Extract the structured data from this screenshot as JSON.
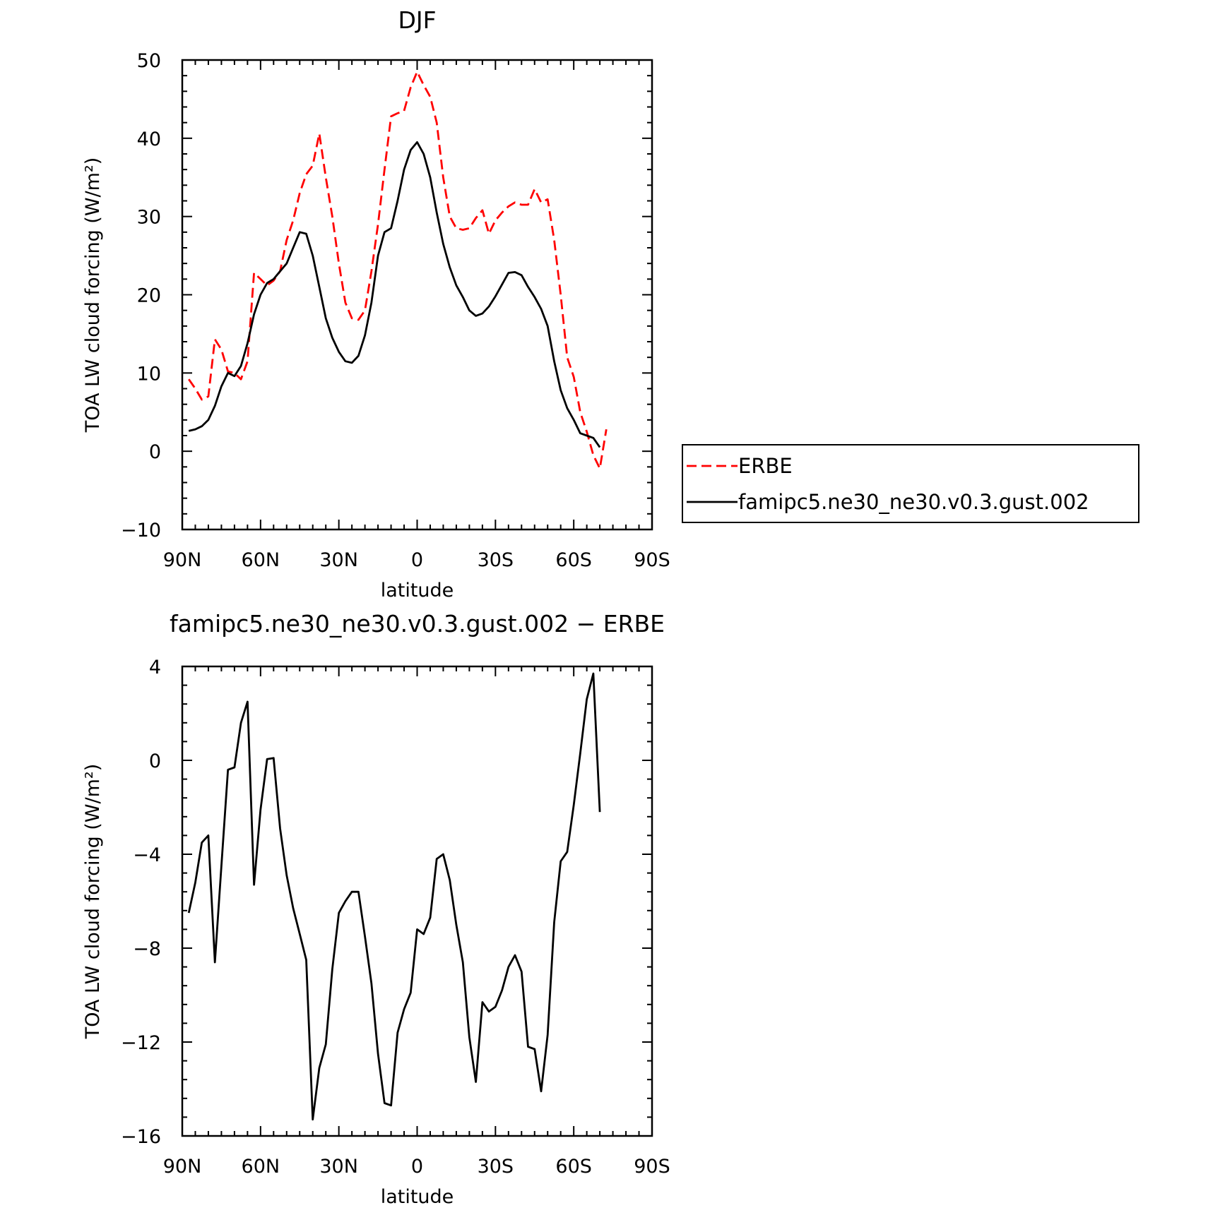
{
  "chart_data": [
    {
      "type": "line",
      "title": "DJF",
      "xlabel": "latitude",
      "ylabel": "TOA LW cloud forcing (W/m²)",
      "xlim": [
        -90,
        90
      ],
      "ylim": [
        -10,
        50
      ],
      "x_ticks": [
        {
          "value": -90,
          "label": "90N"
        },
        {
          "value": -60,
          "label": "60N"
        },
        {
          "value": -30,
          "label": "30N"
        },
        {
          "value": 0,
          "label": "0"
        },
        {
          "value": 30,
          "label": "30S"
        },
        {
          "value": 60,
          "label": "60S"
        },
        {
          "value": 90,
          "label": "90S"
        }
      ],
      "y_ticks": [
        {
          "value": -10,
          "label": "−10"
        },
        {
          "value": 0,
          "label": "0"
        },
        {
          "value": 10,
          "label": "10"
        },
        {
          "value": 20,
          "label": "20"
        },
        {
          "value": 30,
          "label": "30"
        },
        {
          "value": 40,
          "label": "40"
        },
        {
          "value": 50,
          "label": "50"
        }
      ],
      "legend": "right",
      "series": [
        {
          "name": "ERBE",
          "color": "#ff0000",
          "dash": "dashed",
          "points": [
            [
              -87.5,
              9.2
            ],
            [
              -85,
              8.0
            ],
            [
              -82.5,
              6.6
            ],
            [
              -80,
              7.0
            ],
            [
              -77.5,
              14.3
            ],
            [
              -75,
              13.0
            ],
            [
              -72.5,
              10.2
            ],
            [
              -70,
              10.0
            ],
            [
              -67.5,
              9.2
            ],
            [
              -65,
              11.5
            ],
            [
              -62.5,
              22.8
            ],
            [
              -60,
              22.0
            ],
            [
              -57.5,
              21.2
            ],
            [
              -55,
              21.8
            ],
            [
              -52.5,
              23.0
            ],
            [
              -50,
              27.0
            ],
            [
              -47.5,
              29.5
            ],
            [
              -45,
              33.0
            ],
            [
              -42.5,
              35.4
            ],
            [
              -40,
              36.5
            ],
            [
              -37.5,
              40.6
            ],
            [
              -35,
              35.0
            ],
            [
              -32.5,
              30.0
            ],
            [
              -30,
              24.0
            ],
            [
              -27.5,
              19.0
            ],
            [
              -25,
              17.0
            ],
            [
              -22.5,
              16.8
            ],
            [
              -20,
              18.0
            ],
            [
              -17.5,
              23.0
            ],
            [
              -15,
              29.0
            ],
            [
              -12.5,
              36.0
            ],
            [
              -10,
              42.8
            ],
            [
              -7.5,
              43.2
            ],
            [
              -5,
              43.5
            ],
            [
              -2.5,
              46.5
            ],
            [
              0,
              48.5
            ],
            [
              2.5,
              46.8
            ],
            [
              5,
              45.3
            ],
            [
              7.5,
              42.0
            ],
            [
              10,
              35.0
            ],
            [
              12.5,
              30.0
            ],
            [
              15,
              28.5
            ],
            [
              17.5,
              28.3
            ],
            [
              20,
              28.5
            ],
            [
              22.5,
              29.8
            ],
            [
              25,
              30.8
            ],
            [
              27.5,
              27.8
            ],
            [
              30,
              29.5
            ],
            [
              32.5,
              30.5
            ],
            [
              35,
              31.3
            ],
            [
              37.5,
              31.8
            ],
            [
              40,
              31.5
            ],
            [
              42.5,
              31.5
            ],
            [
              45,
              33.5
            ],
            [
              47.5,
              31.8
            ],
            [
              50,
              32.2
            ],
            [
              52.5,
              27.0
            ],
            [
              55,
              20.0
            ],
            [
              57.5,
              12.0
            ],
            [
              60,
              9.5
            ],
            [
              62.5,
              5.0
            ],
            [
              65,
              2.5
            ],
            [
              67.5,
              -0.5
            ],
            [
              70,
              -2.2
            ],
            [
              72.5,
              2.8
            ]
          ]
        },
        {
          "name": "famipc5.ne30_ne30.v0.3.gust.002",
          "color": "#000000",
          "dash": "solid",
          "points": [
            [
              -87.5,
              2.6
            ],
            [
              -85,
              2.8
            ],
            [
              -82.5,
              3.2
            ],
            [
              -80,
              4.0
            ],
            [
              -77.5,
              5.8
            ],
            [
              -75,
              8.3
            ],
            [
              -72.5,
              10.0
            ],
            [
              -70,
              9.6
            ],
            [
              -67.5,
              10.9
            ],
            [
              -65,
              13.8
            ],
            [
              -62.5,
              17.5
            ],
            [
              -60,
              20.0
            ],
            [
              -57.5,
              21.5
            ],
            [
              -55,
              22.0
            ],
            [
              -52.5,
              23.0
            ],
            [
              -50,
              24.0
            ],
            [
              -47.5,
              26.0
            ],
            [
              -45,
              28.0
            ],
            [
              -42.5,
              27.8
            ],
            [
              -40,
              25.0
            ],
            [
              -37.5,
              21.0
            ],
            [
              -35,
              17.0
            ],
            [
              -32.5,
              14.5
            ],
            [
              -30,
              12.7
            ],
            [
              -27.5,
              11.5
            ],
            [
              -25,
              11.3
            ],
            [
              -22.5,
              12.2
            ],
            [
              -20,
              14.8
            ],
            [
              -17.5,
              19.0
            ],
            [
              -15,
              25.0
            ],
            [
              -12.5,
              28.0
            ],
            [
              -10,
              28.5
            ],
            [
              -7.5,
              32.0
            ],
            [
              -5,
              36.0
            ],
            [
              -2.5,
              38.5
            ],
            [
              0,
              39.5
            ],
            [
              2.5,
              38.0
            ],
            [
              5,
              35.0
            ],
            [
              7.5,
              30.5
            ],
            [
              10,
              26.5
            ],
            [
              12.5,
              23.5
            ],
            [
              15,
              21.2
            ],
            [
              17.5,
              19.7
            ],
            [
              20,
              18.0
            ],
            [
              22.5,
              17.3
            ],
            [
              25,
              17.6
            ],
            [
              27.5,
              18.5
            ],
            [
              30,
              19.8
            ],
            [
              32.5,
              21.3
            ],
            [
              35,
              22.8
            ],
            [
              37.5,
              22.9
            ],
            [
              40,
              22.5
            ],
            [
              42.5,
              21.0
            ],
            [
              45,
              19.7
            ],
            [
              47.5,
              18.2
            ],
            [
              50,
              16.0
            ],
            [
              52.5,
              11.5
            ],
            [
              55,
              7.8
            ],
            [
              57.5,
              5.5
            ],
            [
              60,
              4.0
            ],
            [
              62.5,
              2.3
            ],
            [
              65,
              2.0
            ],
            [
              67.5,
              1.7
            ],
            [
              70,
              0.5
            ]
          ]
        }
      ]
    },
    {
      "type": "line",
      "title": "famipc5.ne30_ne30.v0.3.gust.002 − ERBE",
      "xlabel": "latitude",
      "ylabel": "TOA LW cloud forcing (W/m²)",
      "xlim": [
        -90,
        90
      ],
      "ylim": [
        -16,
        4
      ],
      "x_ticks": [
        {
          "value": -90,
          "label": "90N"
        },
        {
          "value": -60,
          "label": "60N"
        },
        {
          "value": -30,
          "label": "30N"
        },
        {
          "value": 0,
          "label": "0"
        },
        {
          "value": 30,
          "label": "30S"
        },
        {
          "value": 60,
          "label": "60S"
        },
        {
          "value": 90,
          "label": "90S"
        }
      ],
      "y_ticks": [
        {
          "value": -16,
          "label": "−16"
        },
        {
          "value": -12,
          "label": "−12"
        },
        {
          "value": -8,
          "label": "−8"
        },
        {
          "value": -4,
          "label": "−4"
        },
        {
          "value": 0,
          "label": "0"
        },
        {
          "value": 4,
          "label": "4"
        }
      ],
      "series": [
        {
          "color": "#000000",
          "dash": "solid",
          "points": [
            [
              -87.5,
              -6.5
            ],
            [
              -85,
              -5.2
            ],
            [
              -82.5,
              -3.5
            ],
            [
              -80,
              -3.2
            ],
            [
              -77.5,
              -8.6
            ],
            [
              -75,
              -4.5
            ],
            [
              -72.5,
              -0.4
            ],
            [
              -70,
              -0.3
            ],
            [
              -67.5,
              1.6
            ],
            [
              -65,
              2.5
            ],
            [
              -62.5,
              -5.3
            ],
            [
              -60,
              -2.1
            ],
            [
              -57.5,
              0.05
            ],
            [
              -55,
              0.1
            ],
            [
              -52.5,
              -2.9
            ],
            [
              -50,
              -4.9
            ],
            [
              -47.5,
              -6.3
            ],
            [
              -45,
              -7.4
            ],
            [
              -42.5,
              -8.5
            ],
            [
              -40,
              -15.3
            ],
            [
              -37.5,
              -13.1
            ],
            [
              -35,
              -12.1
            ],
            [
              -32.5,
              -8.9
            ],
            [
              -30,
              -6.5
            ],
            [
              -27.5,
              -6.0
            ],
            [
              -25,
              -5.6
            ],
            [
              -22.5,
              -5.6
            ],
            [
              -20,
              -7.5
            ],
            [
              -17.5,
              -9.5
            ],
            [
              -15,
              -12.5
            ],
            [
              -12.5,
              -14.6
            ],
            [
              -10,
              -14.7
            ],
            [
              -7.5,
              -11.6
            ],
            [
              -5,
              -10.6
            ],
            [
              -2.5,
              -9.9
            ],
            [
              0,
              -7.2
            ],
            [
              2.5,
              -7.4
            ],
            [
              5,
              -6.7
            ],
            [
              7.5,
              -4.2
            ],
            [
              10,
              -4.0
            ],
            [
              12.5,
              -5.1
            ],
            [
              15,
              -7.0
            ],
            [
              17.5,
              -8.6
            ],
            [
              20,
              -11.8
            ],
            [
              22.5,
              -13.7
            ],
            [
              25,
              -10.3
            ],
            [
              27.5,
              -10.7
            ],
            [
              30,
              -10.5
            ],
            [
              32.5,
              -9.8
            ],
            [
              35,
              -8.8
            ],
            [
              37.5,
              -8.3
            ],
            [
              40,
              -9.0
            ],
            [
              42.5,
              -12.2
            ],
            [
              45,
              -12.3
            ],
            [
              47.5,
              -14.1
            ],
            [
              50,
              -11.7
            ],
            [
              52.5,
              -6.9
            ],
            [
              55,
              -4.3
            ],
            [
              57.5,
              -3.9
            ],
            [
              60,
              -1.9
            ],
            [
              62.5,
              0.3
            ],
            [
              65,
              2.6
            ],
            [
              67.5,
              3.7
            ],
            [
              70,
              -2.2
            ]
          ]
        }
      ]
    }
  ]
}
